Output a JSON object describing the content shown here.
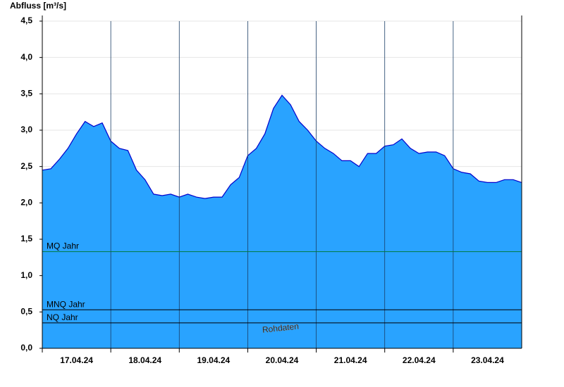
{
  "chart_data": {
    "type": "area",
    "title": "Abfluss [m³/s]",
    "watermark": "Rohdaten",
    "x": [
      "2024-04-17T00:00",
      "2024-04-17T03:00",
      "2024-04-17T06:00",
      "2024-04-17T09:00",
      "2024-04-17T12:00",
      "2024-04-17T15:00",
      "2024-04-17T18:00",
      "2024-04-17T21:00",
      "2024-04-18T00:00",
      "2024-04-18T03:00",
      "2024-04-18T06:00",
      "2024-04-18T09:00",
      "2024-04-18T12:00",
      "2024-04-18T15:00",
      "2024-04-18T18:00",
      "2024-04-18T21:00",
      "2024-04-19T00:00",
      "2024-04-19T03:00",
      "2024-04-19T06:00",
      "2024-04-19T09:00",
      "2024-04-19T12:00",
      "2024-04-19T15:00",
      "2024-04-19T18:00",
      "2024-04-19T21:00",
      "2024-04-20T00:00",
      "2024-04-20T03:00",
      "2024-04-20T06:00",
      "2024-04-20T09:00",
      "2024-04-20T12:00",
      "2024-04-20T15:00",
      "2024-04-20T18:00",
      "2024-04-20T21:00",
      "2024-04-21T00:00",
      "2024-04-21T03:00",
      "2024-04-21T06:00",
      "2024-04-21T09:00",
      "2024-04-21T12:00",
      "2024-04-21T15:00",
      "2024-04-21T18:00",
      "2024-04-21T21:00",
      "2024-04-22T00:00",
      "2024-04-22T03:00",
      "2024-04-22T06:00",
      "2024-04-22T09:00",
      "2024-04-22T12:00",
      "2024-04-22T15:00",
      "2024-04-22T18:00",
      "2024-04-22T21:00",
      "2024-04-23T00:00",
      "2024-04-23T03:00",
      "2024-04-23T06:00",
      "2024-04-23T09:00",
      "2024-04-23T12:00",
      "2024-04-23T15:00",
      "2024-04-23T18:00",
      "2024-04-23T21:00",
      "2024-04-24T00:00"
    ],
    "series": [
      {
        "color": "#29a3ff",
        "line_color": "#0000cc",
        "values": [
          2.45,
          2.47,
          2.6,
          2.75,
          2.95,
          3.12,
          3.05,
          3.1,
          2.85,
          2.75,
          2.72,
          2.45,
          2.32,
          2.12,
          2.1,
          2.12,
          2.08,
          2.12,
          2.08,
          2.06,
          2.08,
          2.08,
          2.25,
          2.35,
          2.65,
          2.75,
          2.95,
          3.3,
          3.48,
          3.35,
          3.12,
          3.0,
          2.85,
          2.75,
          2.68,
          2.58,
          2.58,
          2.5,
          2.68,
          2.68,
          2.78,
          2.8,
          2.88,
          2.75,
          2.68,
          2.7,
          2.7,
          2.65,
          2.47,
          2.42,
          2.4,
          2.3,
          2.28,
          2.28,
          2.32,
          2.32,
          2.28
        ]
      }
    ],
    "xlim": [
      "2024-04-17T00:00",
      "2024-04-24T00:00"
    ],
    "xticks": [
      {
        "value": "2024-04-17T00:00",
        "label": "17.04.24"
      },
      {
        "value": "2024-04-18T00:00",
        "label": "18.04.24"
      },
      {
        "value": "2024-04-19T00:00",
        "label": "19.04.24"
      },
      {
        "value": "2024-04-20T00:00",
        "label": "20.04.24"
      },
      {
        "value": "2024-04-21T00:00",
        "label": "21.04.24"
      },
      {
        "value": "2024-04-22T00:00",
        "label": "22.04.24"
      },
      {
        "value": "2024-04-23T00:00",
        "label": "23.04.24"
      }
    ],
    "ylim": [
      0,
      4.5
    ],
    "yticks": [
      {
        "value": 0,
        "label": "0,0"
      },
      {
        "value": 0.5,
        "label": "0,5"
      },
      {
        "value": 1,
        "label": "1,0"
      },
      {
        "value": 1.5,
        "label": "1,5"
      },
      {
        "value": 2,
        "label": "2,0"
      },
      {
        "value": 2.5,
        "label": "2,5"
      },
      {
        "value": 3,
        "label": "3,0"
      },
      {
        "value": 3.5,
        "label": "3,5"
      },
      {
        "value": 4,
        "label": "4,0"
      },
      {
        "value": 4.5,
        "label": "4,5"
      }
    ],
    "grid": true,
    "reference_lines": [
      {
        "label": "MQ Jahr",
        "value": 1.33,
        "color": "#007a3d"
      },
      {
        "label": "MNQ Jahr",
        "value": 0.53,
        "color": "#000000"
      },
      {
        "label": "NQ Jahr",
        "value": 0.35,
        "color": "#000000"
      }
    ]
  }
}
